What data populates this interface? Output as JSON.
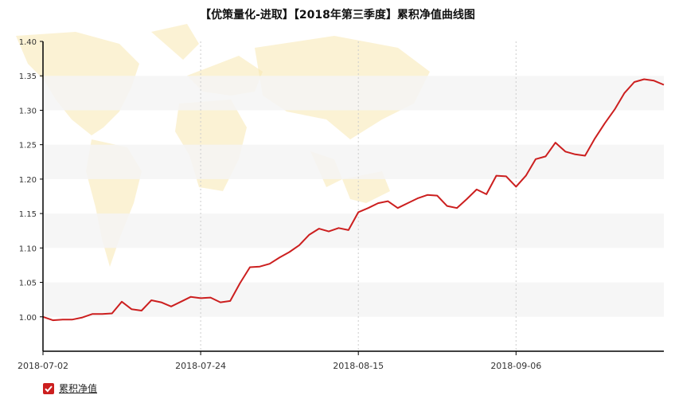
{
  "title": "【优策量化-进取】【2018年第三季度】累积净值曲线图",
  "legend": {
    "label": "累积净值",
    "checked": true
  },
  "chart_data": {
    "type": "line",
    "title": "【优策量化-进取】【2018年第三季度】累积净值曲线图",
    "xlabel": "",
    "ylabel": "",
    "ylim": [
      0.95,
      1.4
    ],
    "yticks": [
      "1.00",
      "1.05",
      "1.10",
      "1.15",
      "1.20",
      "1.25",
      "1.30",
      "1.35",
      "1.40"
    ],
    "yticks_values": [
      1.0,
      1.05,
      1.1,
      1.15,
      1.2,
      1.25,
      1.3,
      1.35,
      1.4
    ],
    "x_tick_labels": [
      "2018-07-02",
      "2018-07-24",
      "2018-08-15",
      "2018-09-06"
    ],
    "x_tick_index": [
      0,
      16,
      32,
      48
    ],
    "grid": "alternating horizontal bands, dotted vertical lines at date ticks",
    "colors": {
      "line": "#cc1f1f",
      "band": "#f5f5f5",
      "axis": "#000000",
      "map": "#f7e7b0"
    },
    "series": [
      {
        "name": "累积净值",
        "values": [
          1.0,
          0.995,
          0.996,
          0.996,
          0.999,
          1.004,
          1.004,
          1.005,
          1.022,
          1.011,
          1.009,
          1.024,
          1.021,
          1.015,
          1.022,
          1.029,
          1.027,
          1.028,
          1.021,
          1.023,
          1.049,
          1.072,
          1.073,
          1.077,
          1.086,
          1.094,
          1.104,
          1.119,
          1.128,
          1.124,
          1.129,
          1.126,
          1.152,
          1.158,
          1.165,
          1.168,
          1.158,
          1.165,
          1.172,
          1.177,
          1.176,
          1.161,
          1.158,
          1.171,
          1.185,
          1.178,
          1.205,
          1.204,
          1.189,
          1.205,
          1.229,
          1.233,
          1.253,
          1.24,
          1.236,
          1.234,
          1.259,
          1.281,
          1.301,
          1.325,
          1.341,
          1.345,
          1.343,
          1.337
        ]
      }
    ]
  }
}
